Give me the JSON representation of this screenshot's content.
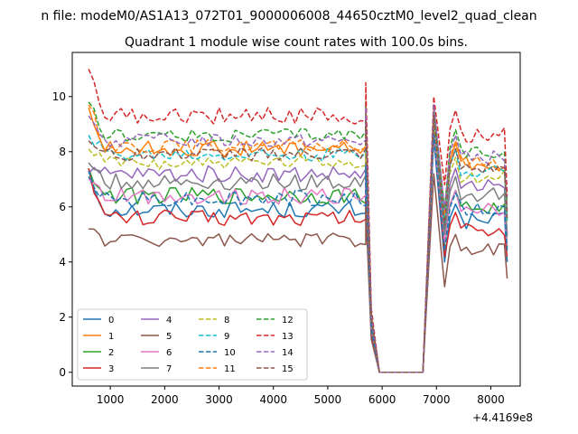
{
  "chart_data": {
    "type": "line",
    "suptitle": "n file: modeM0/AS1A13_072T01_9000006008_44650cztM0_level2_quad_clean",
    "title": "Quadrant 1 module wise count rates with 100.0s bins.",
    "xlabel": "",
    "ylabel": "",
    "x_offset_label": "+4.4169e8",
    "xlim": [
      300,
      8540
    ],
    "ylim": [
      -0.5,
      11.6
    ],
    "xticks": [
      1000,
      2000,
      3000,
      4000,
      5000,
      6000,
      7000,
      8000
    ],
    "yticks": [
      0,
      2,
      4,
      6,
      8,
      10
    ],
    "grid": false,
    "legend": {
      "placement": "lower-left",
      "columns": 4
    },
    "gap": {
      "drop_start": 5750,
      "zero_start": 5950,
      "zero_end": 6750,
      "peak": 6950,
      "dip": 7150,
      "second_peak": 7350,
      "end": 8300
    },
    "series": [
      {
        "name": "0",
        "color": "#1f77b4",
        "dash": "solid",
        "start": 7.1,
        "level": 5.9,
        "end": 4.0,
        "peak": 8.5,
        "dip": 4.0,
        "noise": 0.3
      },
      {
        "name": "1",
        "color": "#ff7f0e",
        "dash": "solid",
        "start": 9.6,
        "level": 8.1,
        "end": 5.8,
        "peak": 9.4,
        "dip": 5.5,
        "noise": 0.3
      },
      {
        "name": "2",
        "color": "#2ca02c",
        "dash": "solid",
        "start": 7.4,
        "level": 6.4,
        "end": 4.5,
        "peak": 8.9,
        "dip": 4.6,
        "noise": 0.3
      },
      {
        "name": "3",
        "color": "#d62728",
        "dash": "solid",
        "start": 7.4,
        "level": 5.6,
        "end": 4.2,
        "peak": 8.7,
        "dip": 4.2,
        "noise": 0.3
      },
      {
        "name": "4",
        "color": "#9467bd",
        "dash": "solid",
        "start": 7.2,
        "level": 7.2,
        "end": 5.0,
        "peak": 9.3,
        "dip": 5.0,
        "noise": 0.3
      },
      {
        "name": "5",
        "color": "#8c564b",
        "dash": "solid",
        "start": 5.2,
        "level": 4.8,
        "end": 3.4,
        "peak": 7.2,
        "dip": 3.1,
        "noise": 0.25
      },
      {
        "name": "6",
        "color": "#e377c2",
        "dash": "solid",
        "start": 7.0,
        "level": 6.4,
        "end": 4.6,
        "peak": 8.6,
        "dip": 4.7,
        "noise": 0.3
      },
      {
        "name": "7",
        "color": "#7f7f7f",
        "dash": "solid",
        "start": 7.6,
        "level": 6.9,
        "end": 4.9,
        "peak": 9.0,
        "dip": 5.0,
        "noise": 0.3
      },
      {
        "name": "8",
        "color": "#bcbd22",
        "dash": "dash",
        "start": 8.1,
        "level": 7.6,
        "end": 5.4,
        "peak": 9.2,
        "dip": 5.4,
        "noise": 0.25
      },
      {
        "name": "9",
        "color": "#17becf",
        "dash": "dash",
        "start": 8.6,
        "level": 7.9,
        "end": 5.5,
        "peak": 9.5,
        "dip": 5.3,
        "noise": 0.25
      },
      {
        "name": "10",
        "color": "#1f77b4",
        "dash": "dash",
        "start": 7.3,
        "level": 6.3,
        "end": 4.4,
        "peak": 8.6,
        "dip": 4.4,
        "noise": 0.3
      },
      {
        "name": "11",
        "color": "#ff7f0e",
        "dash": "dash",
        "start": 9.7,
        "level": 8.2,
        "end": 6.0,
        "peak": 9.6,
        "dip": 5.8,
        "noise": 0.25
      },
      {
        "name": "12",
        "color": "#2ca02c",
        "dash": "dash",
        "start": 9.8,
        "level": 8.6,
        "end": 6.2,
        "peak": 9.6,
        "dip": 5.9,
        "noise": 0.25
      },
      {
        "name": "13",
        "color": "#d62728",
        "dash": "dash",
        "start": 11.0,
        "level": 9.3,
        "end": 6.4,
        "peak": 10.0,
        "dip": 6.8,
        "noise": 0.3
      },
      {
        "name": "14",
        "color": "#9467bd",
        "dash": "dash",
        "start": 9.3,
        "level": 8.4,
        "end": 5.9,
        "peak": 9.7,
        "dip": 5.9,
        "noise": 0.25
      },
      {
        "name": "15",
        "color": "#8c564b",
        "dash": "dash",
        "start": 8.4,
        "level": 7.9,
        "end": 5.6,
        "peak": 9.3,
        "dip": 5.3,
        "noise": 0.25
      }
    ]
  }
}
